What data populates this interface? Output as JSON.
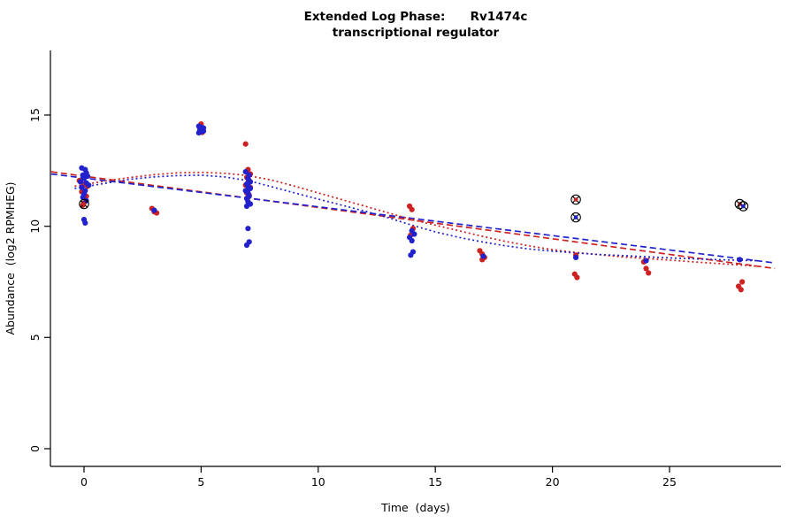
{
  "title": {
    "line1": "Extended Log Phase:      Rv1474c",
    "line2": "transcriptional regulator"
  },
  "axes": {
    "xlabel": "Time  (days)",
    "ylabel": "Abundance  (log2 RPMHEG)",
    "xticks": [
      0,
      5,
      10,
      15,
      20,
      25
    ],
    "yticks": [
      0,
      5,
      10,
      15
    ],
    "xlim": [
      -1.5,
      29.8
    ],
    "ylim": [
      -0.8,
      17.9
    ]
  },
  "colors": {
    "red_series": "#cc2222",
    "blue_series": "#2222cc",
    "axis": "#000000",
    "flag_marker": "#000000"
  },
  "chart_data": {
    "type": "scatter",
    "title": "Extended Log Phase: Rv1474c transcriptional regulator",
    "xlabel": "Time (days)",
    "ylabel": "Abundance (log2 RPMHEG)",
    "xlim": [
      -1.5,
      29.8
    ],
    "ylim": [
      -0.8,
      17.9
    ],
    "grid": false,
    "legend": false,
    "series": [
      {
        "name": "red",
        "color": "#cc2222",
        "points": [
          [
            -0.2,
            12.05
          ],
          [
            0,
            11.9
          ],
          [
            0.15,
            11.8
          ],
          [
            -0.1,
            11.55
          ],
          [
            0.1,
            11.35
          ],
          [
            0,
            11.05
          ],
          [
            -0.05,
            10.95
          ],
          [
            2.9,
            10.8
          ],
          [
            3.0,
            10.65
          ],
          [
            3.1,
            10.6
          ],
          [
            5.0,
            14.6
          ],
          [
            4.95,
            14.32
          ],
          [
            5.05,
            14.22
          ],
          [
            6.9,
            13.7
          ],
          [
            7.0,
            12.55
          ],
          [
            7.1,
            12.35
          ],
          [
            6.95,
            12.2
          ],
          [
            7.05,
            12.05
          ],
          [
            7.0,
            11.95
          ],
          [
            6.9,
            11.85
          ],
          [
            7.1,
            11.75
          ],
          [
            7.0,
            11.65
          ],
          [
            6.95,
            11.5
          ],
          [
            7.05,
            11.4
          ],
          [
            7.0,
            11.3
          ],
          [
            13.9,
            10.9
          ],
          [
            14.0,
            10.75
          ],
          [
            14.05,
            9.9
          ],
          [
            13.95,
            9.6
          ],
          [
            16.9,
            8.9
          ],
          [
            17.0,
            8.75
          ],
          [
            17.1,
            8.6
          ],
          [
            17.0,
            8.5
          ],
          [
            21.0,
            8.7
          ],
          [
            20.95,
            7.85
          ],
          [
            21.05,
            7.7
          ],
          [
            23.9,
            8.4
          ],
          [
            24.0,
            8.1
          ],
          [
            24.1,
            7.9
          ],
          [
            28.1,
            7.5
          ],
          [
            27.95,
            7.3
          ],
          [
            28.05,
            7.15
          ]
        ]
      },
      {
        "name": "blue",
        "color": "#2222cc",
        "points": [
          [
            -0.1,
            12.62
          ],
          [
            0.05,
            12.55
          ],
          [
            0.1,
            12.4
          ],
          [
            -0.05,
            12.3
          ],
          [
            0.15,
            12.25
          ],
          [
            0,
            12.15
          ],
          [
            -0.15,
            12.0
          ],
          [
            0.1,
            11.95
          ],
          [
            0.2,
            11.85
          ],
          [
            -0.1,
            11.75
          ],
          [
            0.05,
            11.6
          ],
          [
            0,
            11.45
          ],
          [
            -0.05,
            11.3
          ],
          [
            0.1,
            11.15
          ],
          [
            0,
            10.3
          ],
          [
            0.05,
            10.15
          ],
          [
            3.0,
            10.72
          ],
          [
            4.9,
            14.5
          ],
          [
            5.0,
            14.45
          ],
          [
            5.1,
            14.42
          ],
          [
            4.95,
            14.35
          ],
          [
            5.05,
            14.3
          ],
          [
            5.0,
            14.25
          ],
          [
            4.9,
            14.2
          ],
          [
            5.1,
            14.28
          ],
          [
            6.9,
            12.45
          ],
          [
            7.05,
            12.3
          ],
          [
            7.0,
            12.15
          ],
          [
            7.1,
            12.0
          ],
          [
            6.95,
            11.9
          ],
          [
            7.0,
            11.8
          ],
          [
            7.1,
            11.7
          ],
          [
            6.9,
            11.6
          ],
          [
            7.0,
            11.5
          ],
          [
            7.05,
            11.35
          ],
          [
            6.95,
            11.25
          ],
          [
            7.0,
            11.1
          ],
          [
            7.1,
            11.0
          ],
          [
            6.95,
            10.9
          ],
          [
            7.0,
            9.9
          ],
          [
            7.05,
            9.3
          ],
          [
            6.95,
            9.15
          ],
          [
            14.0,
            9.8
          ],
          [
            14.1,
            9.65
          ],
          [
            13.9,
            9.5
          ],
          [
            14.0,
            9.35
          ],
          [
            14.05,
            8.85
          ],
          [
            13.95,
            8.7
          ],
          [
            17.05,
            8.65
          ],
          [
            21.0,
            8.6
          ],
          [
            24.0,
            8.45
          ],
          [
            28.0,
            8.5
          ]
        ]
      }
    ],
    "flagged_points": [
      {
        "x": 0.0,
        "y": 11.0,
        "color": "#cc2222"
      },
      {
        "x": 21.0,
        "y": 11.2,
        "color": "#cc2222"
      },
      {
        "x": 21.0,
        "y": 10.4,
        "color": "#2222cc"
      },
      {
        "x": 28.0,
        "y": 11.0,
        "color": "#cc2222"
      },
      {
        "x": 28.15,
        "y": 10.9,
        "color": "#2222cc"
      }
    ],
    "trend_lines": [
      {
        "name": "red-linear",
        "style": "dashed",
        "color": "#cc2222",
        "dash": "7 4",
        "points": [
          [
            -1.4,
            12.45
          ],
          [
            29.5,
            8.1
          ]
        ]
      },
      {
        "name": "blue-linear",
        "style": "dashed",
        "color": "#2222cc",
        "dash": "7 4",
        "points": [
          [
            -1.4,
            12.35
          ],
          [
            29.5,
            8.35
          ]
        ]
      },
      {
        "name": "red-loess",
        "style": "dotted",
        "color": "#cc2222",
        "dash": "2 3",
        "points": [
          [
            -0.4,
            11.8
          ],
          [
            1,
            12.05
          ],
          [
            2,
            12.2
          ],
          [
            3,
            12.32
          ],
          [
            4,
            12.4
          ],
          [
            5,
            12.42
          ],
          [
            6,
            12.38
          ],
          [
            7,
            12.28
          ],
          [
            8,
            12.08
          ],
          [
            9,
            11.8
          ],
          [
            10,
            11.5
          ],
          [
            11,
            11.2
          ],
          [
            12,
            10.9
          ],
          [
            13,
            10.6
          ],
          [
            14,
            10.3
          ],
          [
            15,
            10.05
          ],
          [
            16,
            9.8
          ],
          [
            17,
            9.55
          ],
          [
            18,
            9.32
          ],
          [
            19,
            9.12
          ],
          [
            20,
            8.95
          ],
          [
            21,
            8.82
          ],
          [
            22,
            8.72
          ],
          [
            23,
            8.62
          ],
          [
            24,
            8.55
          ],
          [
            25,
            8.48
          ],
          [
            26,
            8.4
          ],
          [
            27,
            8.33
          ],
          [
            28,
            8.26
          ],
          [
            28.8,
            8.2
          ]
        ]
      },
      {
        "name": "blue-loess",
        "style": "dotted",
        "color": "#2222cc",
        "dash": "2 3",
        "points": [
          [
            -0.4,
            11.7
          ],
          [
            1,
            11.95
          ],
          [
            2,
            12.12
          ],
          [
            3,
            12.22
          ],
          [
            4,
            12.28
          ],
          [
            5,
            12.3
          ],
          [
            6,
            12.22
          ],
          [
            7,
            12.05
          ],
          [
            8,
            11.78
          ],
          [
            9,
            11.5
          ],
          [
            10,
            11.22
          ],
          [
            11,
            10.95
          ],
          [
            12,
            10.68
          ],
          [
            13,
            10.38
          ],
          [
            14,
            10.05
          ],
          [
            15,
            9.75
          ],
          [
            16,
            9.5
          ],
          [
            17,
            9.3
          ],
          [
            18,
            9.12
          ],
          [
            19,
            8.98
          ],
          [
            20,
            8.88
          ],
          [
            21,
            8.8
          ],
          [
            22,
            8.73
          ],
          [
            23,
            8.68
          ],
          [
            24,
            8.63
          ],
          [
            25,
            8.58
          ],
          [
            26,
            8.54
          ],
          [
            27,
            8.5
          ],
          [
            28,
            8.47
          ],
          [
            28.8,
            8.45
          ]
        ]
      }
    ]
  }
}
